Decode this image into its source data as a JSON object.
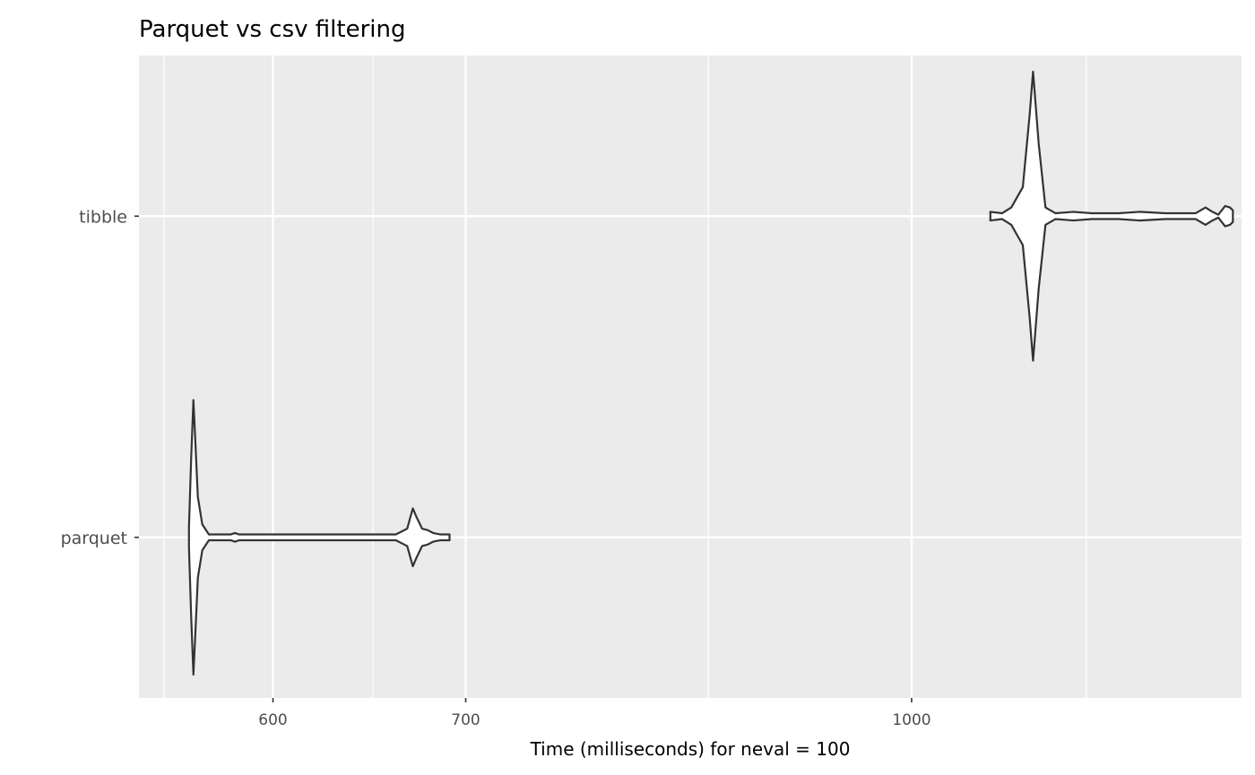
{
  "chart_data": {
    "type": "violin",
    "orientation": "horizontal",
    "title": "Parquet vs csv filtering",
    "xlabel": "Time (milliseconds) for neval = 100",
    "ylabel": "",
    "x_scale": "log",
    "xlim": [
      539,
      1302
    ],
    "x_major_ticks": [
      600,
      700,
      1000
    ],
    "x_minor_ticks": [
      550,
      650,
      850,
      1150
    ],
    "categories": [
      "parquet",
      "tibble"
    ],
    "grid": true,
    "legend": "none",
    "colors": {
      "panel": "#EBEBEB",
      "grid": "#FFFFFF",
      "violin_stroke": "#333333",
      "violin_fill": "#FFFFFF",
      "text": "#4D4D4D",
      "title": "#000000"
    },
    "series": [
      {
        "category": "parquet",
        "range": [
          561,
          691
        ],
        "density_profile": [
          [
            561,
            0.07
          ],
          [
            562,
            0.55
          ],
          [
            563,
            0.95
          ],
          [
            564,
            0.62
          ],
          [
            565,
            0.28
          ],
          [
            567,
            0.09
          ],
          [
            570,
            0.02
          ],
          [
            580,
            0.02
          ],
          [
            582,
            0.03
          ],
          [
            584,
            0.02
          ],
          [
            600,
            0.02
          ],
          [
            640,
            0.02
          ],
          [
            662,
            0.02
          ],
          [
            668,
            0.06
          ],
          [
            671,
            0.2
          ],
          [
            673,
            0.14
          ],
          [
            676,
            0.06
          ],
          [
            679,
            0.05
          ],
          [
            682,
            0.03
          ],
          [
            686,
            0.02
          ],
          [
            691,
            0.02
          ]
        ]
      },
      {
        "category": "tibble",
        "range": [
          1065,
          1293
        ],
        "density_profile": [
          [
            1065,
            0.03
          ],
          [
            1075,
            0.02
          ],
          [
            1083,
            0.06
          ],
          [
            1093,
            0.2
          ],
          [
            1099,
            0.7
          ],
          [
            1102,
            1.0
          ],
          [
            1107,
            0.5
          ],
          [
            1113,
            0.06
          ],
          [
            1122,
            0.02
          ],
          [
            1138,
            0.03
          ],
          [
            1155,
            0.02
          ],
          [
            1180,
            0.02
          ],
          [
            1200,
            0.03
          ],
          [
            1225,
            0.02
          ],
          [
            1255,
            0.02
          ],
          [
            1265,
            0.06
          ],
          [
            1272,
            0.03
          ],
          [
            1278,
            0.01
          ],
          [
            1285,
            0.07
          ],
          [
            1290,
            0.06
          ],
          [
            1293,
            0.04
          ]
        ]
      }
    ]
  }
}
